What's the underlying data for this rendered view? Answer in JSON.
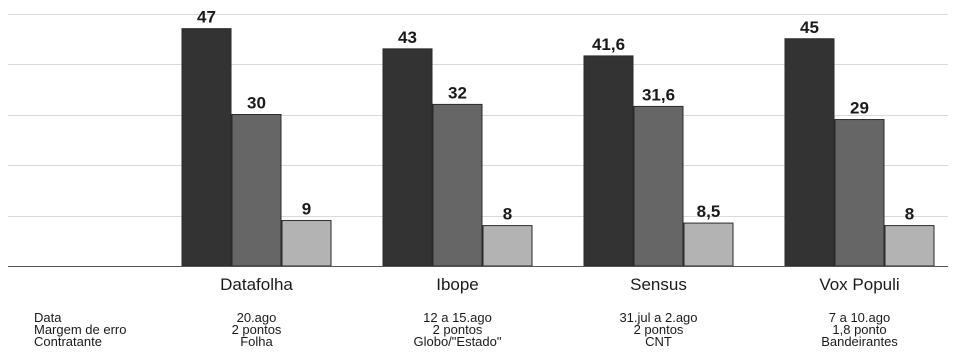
{
  "chart_data": {
    "type": "bar",
    "categories": [
      "Datafolha",
      "Ibope",
      "Sensus",
      "Vox Populi"
    ],
    "series": [
      {
        "values": [
          47,
          43,
          41.6,
          45
        ],
        "color": "#333333"
      },
      {
        "values": [
          30,
          32,
          31.6,
          29
        ],
        "color": "#666666"
      },
      {
        "values": [
          9,
          8,
          8.5,
          8
        ],
        "color": "#b3b3b3"
      }
    ],
    "value_labels": [
      [
        "47",
        "30",
        "9"
      ],
      [
        "43",
        "32",
        "8"
      ],
      [
        "41,6",
        "31,6",
        "8,5"
      ],
      [
        "45",
        "29",
        "8"
      ]
    ],
    "ylim": [
      0,
      52
    ],
    "grid": true,
    "gridline_values": [
      0,
      10,
      20,
      30,
      40,
      50
    ]
  },
  "info_table": {
    "row_labels": [
      "Data",
      "Margem de erro",
      "Contratante"
    ],
    "columns": [
      [
        "20.ago",
        "2 pontos",
        "Folha"
      ],
      [
        "12 a 15.ago",
        "2 pontos",
        "Globo/\"Estado\""
      ],
      [
        "31.jul a 2.ago",
        "2 pontos",
        "CNT"
      ],
      [
        "7 a 10.ago",
        "1,8 ponto",
        "Bandeirantes"
      ]
    ]
  }
}
